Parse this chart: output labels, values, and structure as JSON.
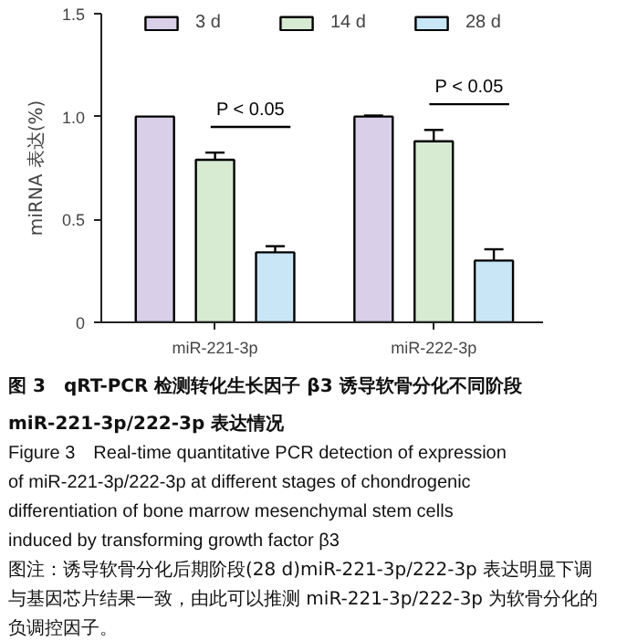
{
  "chart_data": {
    "type": "bar",
    "title": "图 3　qRT-PCR 检测转化生长因子 β3 诱导软骨分化不同阶段 miR-221-3p/222-3p 表达情况",
    "subtitle": "Figure 3　Real-time quantitative PCR detection of expression of miR-221-3p/222-3p at different stages of chondrogenic differentiation of bone marrow mesenchymal stem cells induced by transforming growth factor β3",
    "ylabel": "miRNA 表达(%)",
    "categories": [
      "miR-221-3p",
      "miR-222-3p"
    ],
    "series": [
      {
        "name": "3 d",
        "color": "#d9cfe8",
        "values": [
          1.0,
          1.0
        ],
        "errors": [
          null,
          [
            1.0,
            1.005
          ]
        ]
      },
      {
        "name": "14 d",
        "color": "#d6ebd2",
        "values": [
          0.79,
          0.88
        ],
        "errors": [
          [
            0.79,
            0.825
          ],
          [
            0.88,
            0.935
          ]
        ]
      },
      {
        "name": "28 d",
        "color": "#c8e6f6",
        "values": [
          0.34,
          0.3
        ],
        "errors": [
          [
            0.34,
            0.37
          ],
          [
            0.3,
            0.355
          ]
        ]
      }
    ],
    "ylim": [
      0,
      1.5
    ],
    "yticks": [
      0,
      0.5,
      {
        "value": 1.0,
        "label": "1.0"
      },
      1.5
    ],
    "grid": false,
    "legend": "top",
    "annotations": [
      "P < 0.05",
      "P < 0.05",
      "图注：诱导软骨分化后期阶段(28 d)miR-221-3p/222-3p 表达明显下调与基因芯片结果一致，由此可以推测 miR-221-3p/222-3p 为软骨分化的负调控因子。"
    ]
  }
}
